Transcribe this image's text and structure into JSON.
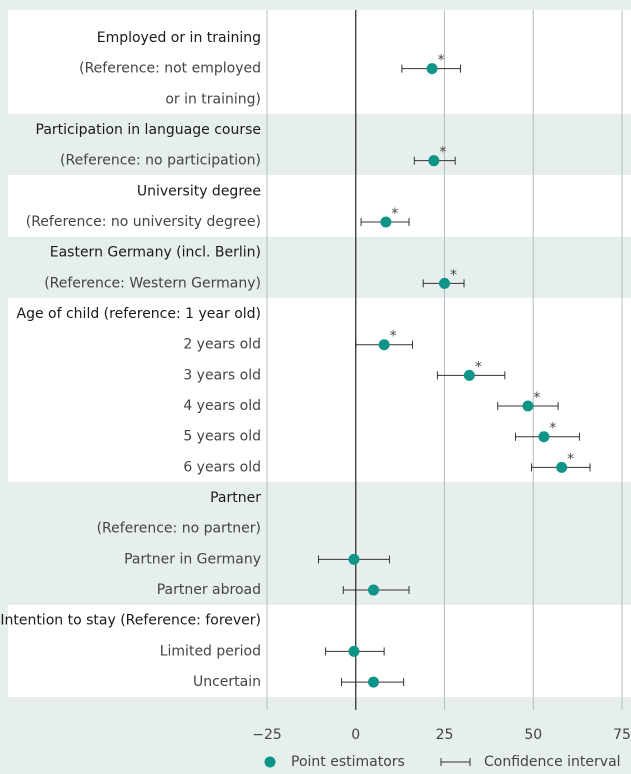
{
  "chart_data": {
    "type": "errorbar",
    "categories": [
      "Employed or in training",
      "(Reference: not employed",
      "or in training)",
      "Participation in language course",
      "(Reference: no participation)",
      "University degree",
      "(Reference: no university degree)",
      "Eastern Germany (incl. Berlin)",
      "(Reference: Western Germany)",
      "Age of child (reference: 1 year old)",
      "2 years old",
      "3 years old",
      "4 years old",
      "5 years old",
      "6 years old",
      "Partner",
      "(Reference: no partner)",
      "Partner in Germany",
      "Partner abroad",
      "Intention to stay (Reference: forever)",
      "Limited period",
      "Uncertain"
    ],
    "series": [
      {
        "name": "Point estimators",
        "color": "#0f9488",
        "values": [
          null,
          21.5,
          null,
          null,
          22,
          null,
          8.5,
          null,
          25,
          null,
          8,
          32,
          48.5,
          53,
          58,
          null,
          null,
          -0.5,
          5,
          null,
          -0.5,
          5
        ],
        "ci_low": [
          null,
          13,
          null,
          null,
          16.5,
          null,
          1.5,
          null,
          19,
          null,
          0,
          23,
          40,
          45,
          49.5,
          null,
          null,
          -10.5,
          -3.5,
          null,
          -8.5,
          -4
        ],
        "ci_high": [
          null,
          29.5,
          null,
          null,
          28,
          null,
          15,
          null,
          30.5,
          null,
          16,
          42,
          57,
          63,
          66,
          null,
          null,
          9.5,
          15,
          null,
          8,
          13.5
        ],
        "ci_name": "Confidence interval",
        "significance": [
          null,
          "*",
          null,
          null,
          "*",
          null,
          "*",
          null,
          "*",
          null,
          "*",
          "*",
          "*",
          "*",
          "*",
          null,
          null,
          null,
          null,
          null,
          null,
          null
        ]
      }
    ],
    "xlim": [
      -25,
      75
    ],
    "xticks": [
      {
        "value": -25,
        "label": "−25"
      },
      0,
      25,
      50,
      75
    ],
    "grid": true
  }
}
